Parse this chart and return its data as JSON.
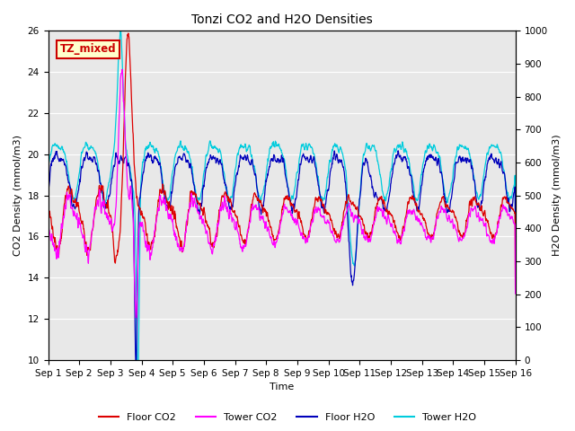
{
  "title": "Tonzi CO2 and H2O Densities",
  "xlabel": "Time",
  "ylabel_left": "CO2 Density (mmol/m3)",
  "ylabel_right": "H2O Density (mmol/m3)",
  "ylim_left": [
    10,
    26
  ],
  "ylim_right": [
    0,
    1000
  ],
  "annotation_text": "TZ_mixed",
  "annotation_bg": "#ffffcc",
  "annotation_edge": "#cc0000",
  "colors": {
    "floor_co2": "#dd0000",
    "tower_co2": "#ff00ff",
    "floor_h2o": "#0000bb",
    "tower_h2o": "#00ccdd"
  },
  "xtick_labels": [
    "Sep 1",
    "Sep 2",
    "Sep 3",
    "Sep 4",
    "Sep 5",
    "Sep 6",
    "Sep 7",
    "Sep 8",
    "Sep 9",
    "Sep 10",
    "Sep 11",
    "Sep 12",
    "Sep 13",
    "Sep 14",
    "Sep 15",
    "Sep 16"
  ],
  "yticks_left": [
    10,
    12,
    14,
    16,
    18,
    20,
    22,
    24,
    26
  ],
  "yticks_right": [
    0,
    100,
    200,
    300,
    400,
    500,
    600,
    700,
    800,
    900,
    1000
  ],
  "legend_labels": [
    "Floor CO2",
    "Tower CO2",
    "Floor H2O",
    "Tower H2O"
  ],
  "bg_color": "#e8e8e8",
  "grid_color": "#ffffff"
}
